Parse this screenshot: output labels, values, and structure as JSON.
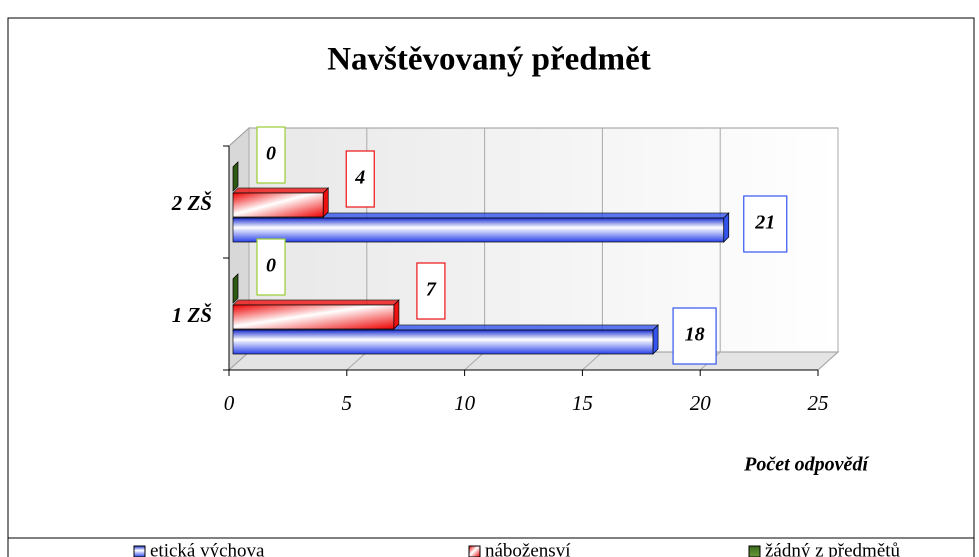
{
  "chart_data": {
    "type": "bar",
    "orientation": "horizontal",
    "title": "Navštěvovaný předmět",
    "x_label": "Počet odpovědí",
    "categories": [
      "1 ZŠ",
      "2 ZŠ"
    ],
    "series": [
      {
        "name": "etická výchova",
        "color": "#3355ee",
        "values": [
          18,
          21
        ]
      },
      {
        "name": "nábožensví",
        "color": "#ee1111",
        "values": [
          7,
          4
        ]
      },
      {
        "name": "žádný z předmětů",
        "color": "#99cc33",
        "values": [
          0,
          0
        ]
      }
    ],
    "xlim": [
      0,
      25
    ],
    "xticks": [
      0,
      5,
      10,
      15,
      20,
      25
    ],
    "grid": true,
    "legend": "bottom"
  }
}
